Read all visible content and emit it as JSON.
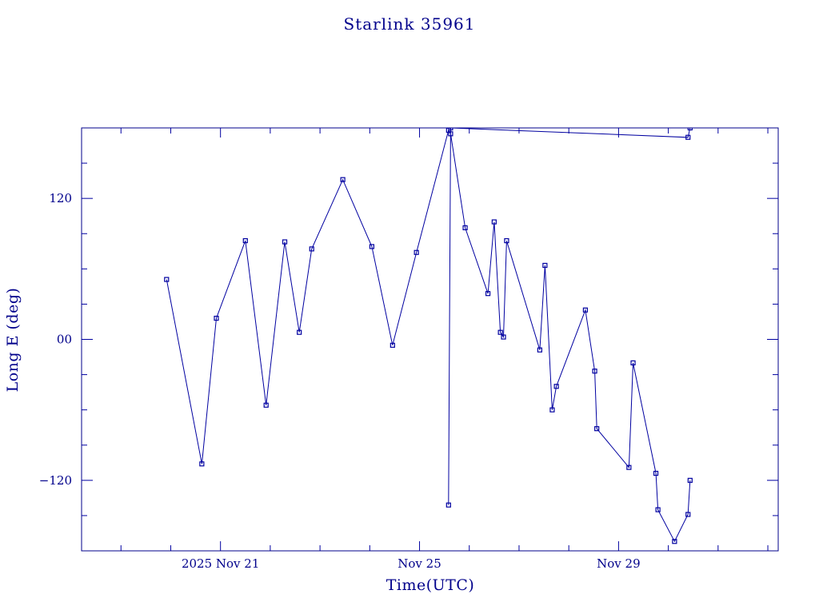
{
  "chart_data": {
    "type": "line",
    "title": "Starlink 35961",
    "xlabel": "Time(UTC)",
    "ylabel": "Long E (deg)",
    "x_unit": "day",
    "xlim": [
      "2025-11-18T05:00Z",
      "2025-12-02T05:00Z"
    ],
    "ylim": [
      -180,
      180
    ],
    "x_ticks": [
      {
        "x": "2025-11-21T00:00Z",
        "label": "2025 Nov 21"
      },
      {
        "x": "2025-11-25T00:00Z",
        "label": "Nov 25"
      },
      {
        "x": "2025-11-29T00:00Z",
        "label": "Nov 29"
      }
    ],
    "y_ticks": [
      {
        "y": 120,
        "label": "120"
      },
      {
        "y": 0,
        "label": "00"
      },
      {
        "y": -120,
        "label": "−120"
      }
    ],
    "grid": false,
    "legend": "none",
    "color": "#0000a0",
    "markers": "square",
    "series": [
      {
        "x": [
          "2025-11-19T22:00Z",
          "2025-11-20T15:00Z",
          "2025-11-20T22:00Z",
          "2025-11-21T12:00Z",
          "2025-11-21T22:00Z",
          "2025-11-22T07:00Z",
          "2025-11-22T14:00Z",
          "2025-11-22T20:00Z",
          "2025-11-23T11:00Z",
          "2025-11-24T01:00Z",
          "2025-11-24T11:00Z",
          "2025-11-24T22:30Z",
          "2025-11-25T14:00Z",
          "2025-11-25T15:00Z",
          "2025-11-25T22:00Z",
          "2025-11-26T09:00Z",
          "2025-11-26T12:00Z",
          "2025-11-26T15:00Z",
          "2025-11-26T16:30Z",
          "2025-11-26T18:00Z",
          "2025-11-27T10:00Z",
          "2025-11-27T12:30Z",
          "2025-11-27T16:00Z",
          "2025-11-27T18:00Z",
          "2025-11-28T08:00Z",
          "2025-11-28T12:30Z",
          "2025-11-28T13:30Z",
          "2025-11-29T05:00Z",
          "2025-11-29T07:00Z",
          "2025-11-29T18:00Z",
          "2025-11-29T19:00Z",
          "2025-11-30T03:00Z",
          "2025-11-30T09:30Z",
          "2025-11-30T10:30Z"
        ],
        "y": [
          51,
          -106,
          18,
          84,
          -56,
          83,
          6,
          77,
          136,
          79,
          -5,
          74,
          178,
          175,
          95,
          39,
          100,
          6,
          2,
          84,
          -9,
          63,
          -60,
          -40,
          25,
          -27,
          -76,
          -109,
          -20,
          -114,
          -145,
          -172,
          -149,
          -120
        ]
      },
      {
        "x": [
          "2025-11-25T14:00Z",
          "2025-11-25T15:00Z",
          "2025-11-30T09:30Z",
          "2025-11-30T10:30Z"
        ],
        "y": [
          -141,
          180,
          172,
          180
        ]
      }
    ]
  }
}
